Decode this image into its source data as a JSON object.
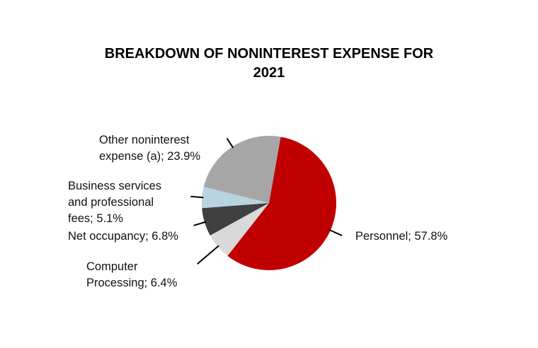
{
  "chart_data": {
    "type": "pie",
    "title_lines": [
      "BREAKDOWN OF NONINTEREST EXPENSE FOR",
      "2021"
    ],
    "slices": [
      {
        "label": "Personnel",
        "value": 57.8,
        "color": "#c00000",
        "label_lines": [
          "Personnel; 57.8%"
        ]
      },
      {
        "label": "Computer Processing",
        "value": 6.4,
        "color": "#d9d9d9",
        "label_lines": [
          "Computer",
          "Processing; 6.4%"
        ]
      },
      {
        "label": "Net occupancy",
        "value": 6.8,
        "color": "#404040",
        "label_lines": [
          "Net occupancy; 6.8%"
        ]
      },
      {
        "label": "Business services and professional fees",
        "value": 5.1,
        "color": "#b9d3e0",
        "label_lines": [
          "Business services",
          "and professional",
          "fees; 5.1%"
        ]
      },
      {
        "label": "Other noninterest expense (a)",
        "value": 23.9,
        "color": "#a6a6a6",
        "label_lines": [
          "Other noninterest",
          "expense (a); 23.9%"
        ]
      }
    ],
    "start_angle_deg": 10,
    "direction": "clockwise",
    "legend": "none"
  }
}
